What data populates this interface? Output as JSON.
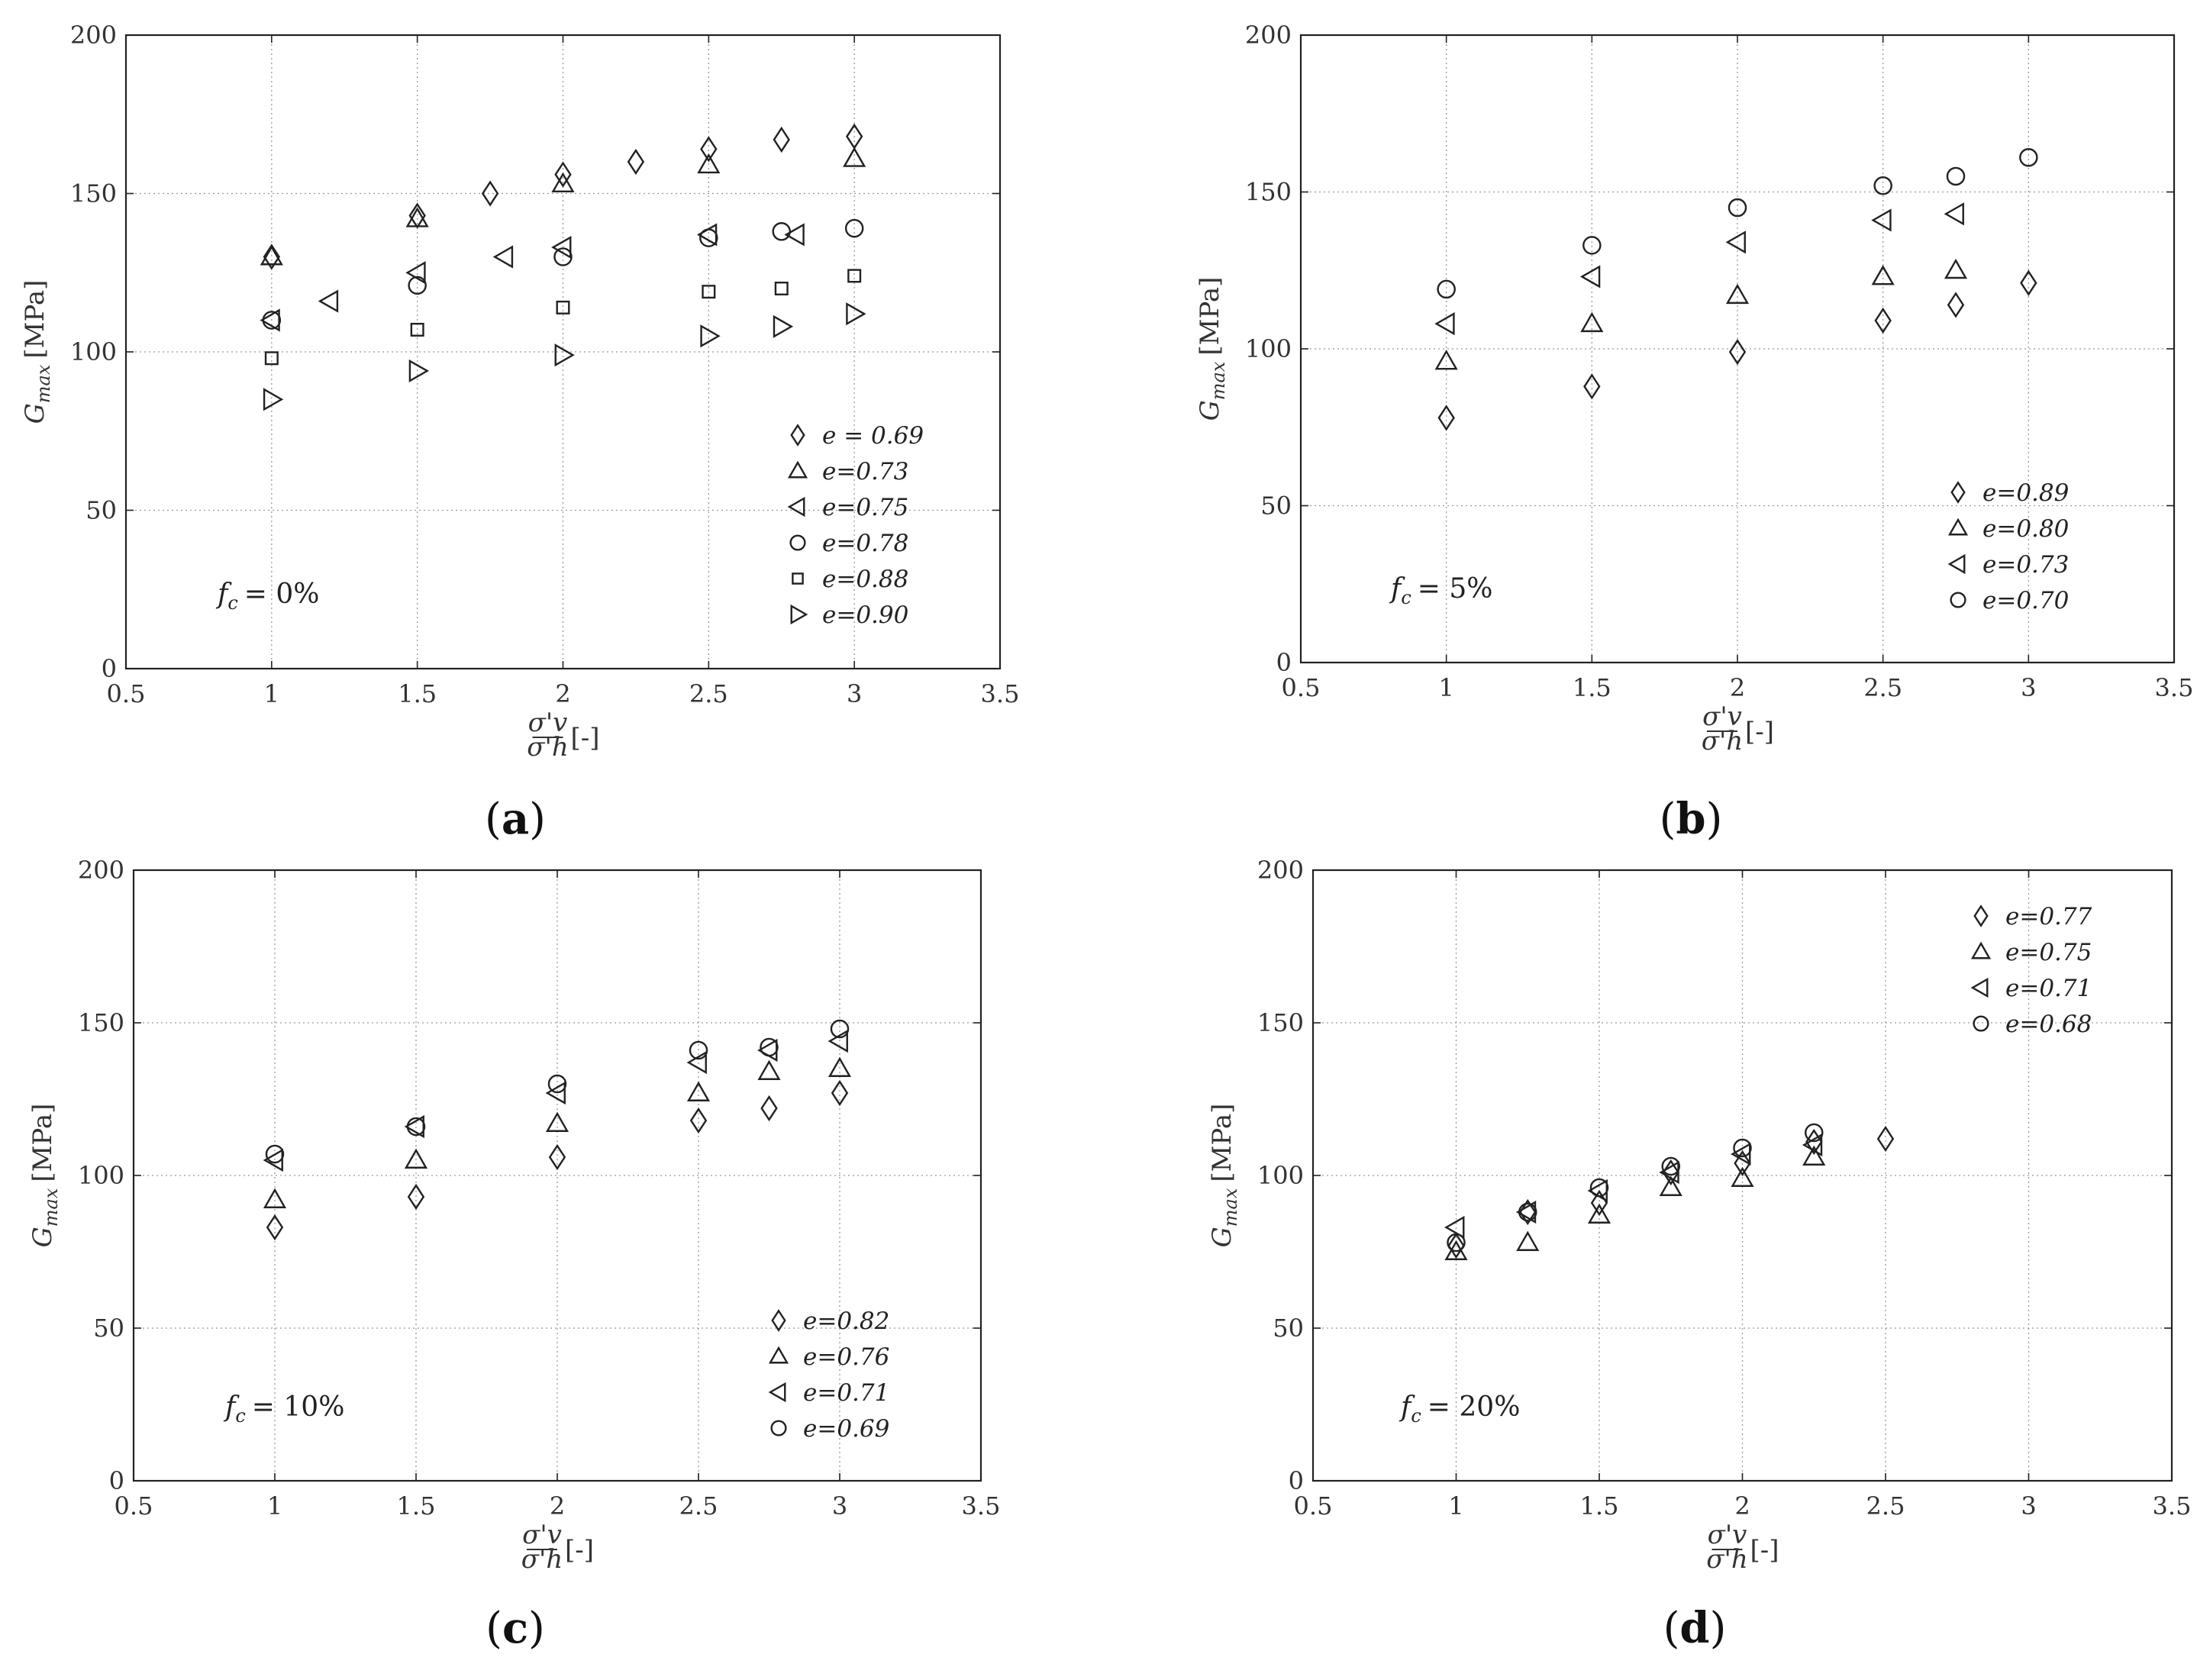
{
  "chart_data": [
    {
      "type": "scatter",
      "caption_letter": "a",
      "annotation_prefix": "f",
      "annotation_sub": "c",
      "annotation_value": "= 0%",
      "ylabel": "G",
      "ylabel_sub": "max",
      "ylabel_unit": "[MPa]",
      "xlabel_num": "σ'v",
      "xlabel_den": "σ'h",
      "xlabel_unit": "[-]",
      "xlim": [
        0.5,
        3.5
      ],
      "ylim": [
        0,
        200
      ],
      "xticks": [
        "0.5",
        "1",
        "1.5",
        "2",
        "2.5",
        "3",
        "3.5"
      ],
      "yticks": [
        "0",
        "50",
        "100",
        "150",
        "200"
      ],
      "legend_position": "bottom-right",
      "series": [
        {
          "name": "e = 0.69",
          "marker": "diamond",
          "x": [
            1,
            1.5,
            1.75,
            2,
            2.25,
            2.5,
            2.75,
            3
          ],
          "y": [
            130,
            143,
            150,
            156,
            160,
            164,
            167,
            168
          ]
        },
        {
          "name": "e=0.73",
          "marker": "triangle-up",
          "x": [
            1,
            1.5,
            2,
            2.5,
            3
          ],
          "y": [
            130,
            142,
            153,
            159,
            161
          ]
        },
        {
          "name": "e=0.75",
          "marker": "triangle-left",
          "x": [
            1,
            1.2,
            1.5,
            1.8,
            2,
            2.5,
            2.8
          ],
          "y": [
            110,
            116,
            125,
            130,
            133,
            137,
            137
          ]
        },
        {
          "name": "e=0.78",
          "marker": "circle",
          "x": [
            1,
            1.5,
            2,
            2.5,
            2.75,
            3
          ],
          "y": [
            110,
            121,
            130,
            136,
            138,
            139
          ]
        },
        {
          "name": "e=0.88",
          "marker": "square",
          "x": [
            1,
            1.5,
            2,
            2.5,
            2.75,
            3
          ],
          "y": [
            98,
            107,
            114,
            119,
            120,
            124
          ]
        },
        {
          "name": "e=0.90",
          "marker": "triangle-right",
          "x": [
            1,
            1.5,
            2,
            2.5,
            2.75,
            3
          ],
          "y": [
            85,
            94,
            99,
            105,
            108,
            112
          ]
        }
      ]
    },
    {
      "type": "scatter",
      "caption_letter": "b",
      "annotation_prefix": "f",
      "annotation_sub": "c",
      "annotation_value": "= 5%",
      "ylabel": "G",
      "ylabel_sub": "max",
      "ylabel_unit": "[MPa]",
      "xlabel_num": "σ'v",
      "xlabel_den": "σ'h",
      "xlabel_unit": "[-]",
      "xlim": [
        0.5,
        3.5
      ],
      "ylim": [
        0,
        200
      ],
      "xticks": [
        "0.5",
        "1",
        "1.5",
        "2",
        "2.5",
        "3",
        "3.5"
      ],
      "yticks": [
        "0",
        "50",
        "100",
        "150",
        "200"
      ],
      "legend_position": "bottom-right",
      "series": [
        {
          "name": "e=0.89",
          "marker": "diamond",
          "x": [
            1,
            1.5,
            2,
            2.5,
            2.75,
            3
          ],
          "y": [
            78,
            88,
            99,
            109,
            114,
            121
          ]
        },
        {
          "name": "e=0.80",
          "marker": "triangle-up",
          "x": [
            1,
            1.5,
            2,
            2.5,
            2.75
          ],
          "y": [
            96,
            108,
            117,
            123,
            125
          ]
        },
        {
          "name": "e=0.73",
          "marker": "triangle-left",
          "x": [
            1,
            1.5,
            2,
            2.5,
            2.75
          ],
          "y": [
            108,
            123,
            134,
            141,
            143
          ]
        },
        {
          "name": "e=0.70",
          "marker": "circle",
          "x": [
            1,
            1.5,
            2,
            2.5,
            2.75,
            3
          ],
          "y": [
            119,
            133,
            145,
            152,
            155,
            161
          ]
        }
      ]
    },
    {
      "type": "scatter",
      "caption_letter": "c",
      "annotation_prefix": "f",
      "annotation_sub": "c",
      "annotation_value": "= 10%",
      "ylabel": "G",
      "ylabel_sub": "max",
      "ylabel_unit": "[MPa]",
      "xlabel_num": "σ'v",
      "xlabel_den": "σ'h",
      "xlabel_unit": "[-]",
      "xlim": [
        0.5,
        3.5
      ],
      "ylim": [
        0,
        200
      ],
      "xticks": [
        "0.5",
        "1",
        "1.5",
        "2",
        "2.5",
        "3",
        "3.5"
      ],
      "yticks": [
        "0",
        "50",
        "100",
        "150",
        "200"
      ],
      "legend_position": "bottom-right",
      "series": [
        {
          "name": "e=0.82",
          "marker": "diamond",
          "x": [
            1,
            1.5,
            2,
            2.5,
            2.75,
            3
          ],
          "y": [
            83,
            93,
            106,
            118,
            122,
            127
          ]
        },
        {
          "name": "e=0.76",
          "marker": "triangle-up",
          "x": [
            1,
            1.5,
            2,
            2.5,
            2.75,
            3
          ],
          "y": [
            92,
            105,
            117,
            127,
            134,
            135
          ]
        },
        {
          "name": "e=0.71",
          "marker": "triangle-left",
          "x": [
            1,
            1.5,
            2,
            2.5,
            2.75,
            3
          ],
          "y": [
            105,
            116,
            127,
            137,
            141,
            144
          ]
        },
        {
          "name": "e=0.69",
          "marker": "circle",
          "x": [
            1,
            1.5,
            2,
            2.5,
            2.75,
            3
          ],
          "y": [
            107,
            116,
            130,
            141,
            142,
            148
          ]
        }
      ]
    },
    {
      "type": "scatter",
      "caption_letter": "d",
      "annotation_prefix": "f",
      "annotation_sub": "c",
      "annotation_value": "= 20%",
      "ylabel": "G",
      "ylabel_sub": "max",
      "ylabel_unit": "[MPa]",
      "xlabel_num": "σ'v",
      "xlabel_den": "σ'h",
      "xlabel_unit": "[-]",
      "xlim": [
        0.5,
        3.5
      ],
      "ylim": [
        0,
        200
      ],
      "xticks": [
        "0.5",
        "1",
        "1.5",
        "2",
        "2.5",
        "3",
        "3.5"
      ],
      "yticks": [
        "0",
        "50",
        "100",
        "150",
        "200"
      ],
      "legend_position": "top-right",
      "series": [
        {
          "name": "e=0.77",
          "marker": "diamond",
          "x": [
            1,
            1.25,
            1.5,
            1.75,
            2,
            2.25,
            2.5
          ],
          "y": [
            77,
            88,
            91,
            101,
            104,
            111,
            112
          ]
        },
        {
          "name": "e=0.75",
          "marker": "triangle-up",
          "x": [
            1,
            1.25,
            1.5,
            1.75,
            2,
            2.25
          ],
          "y": [
            75,
            78,
            87,
            96,
            99,
            106
          ]
        },
        {
          "name": "e=0.71",
          "marker": "triangle-left",
          "x": [
            1,
            1.25,
            1.5,
            1.75,
            2,
            2.25
          ],
          "y": [
            83,
            88,
            95,
            101,
            107,
            110
          ]
        },
        {
          "name": "e=0.68",
          "marker": "circle",
          "x": [
            1,
            1.25,
            1.5,
            1.75,
            2,
            2.25
          ],
          "y": [
            78,
            88,
            96,
            103,
            109,
            114
          ]
        }
      ]
    }
  ]
}
